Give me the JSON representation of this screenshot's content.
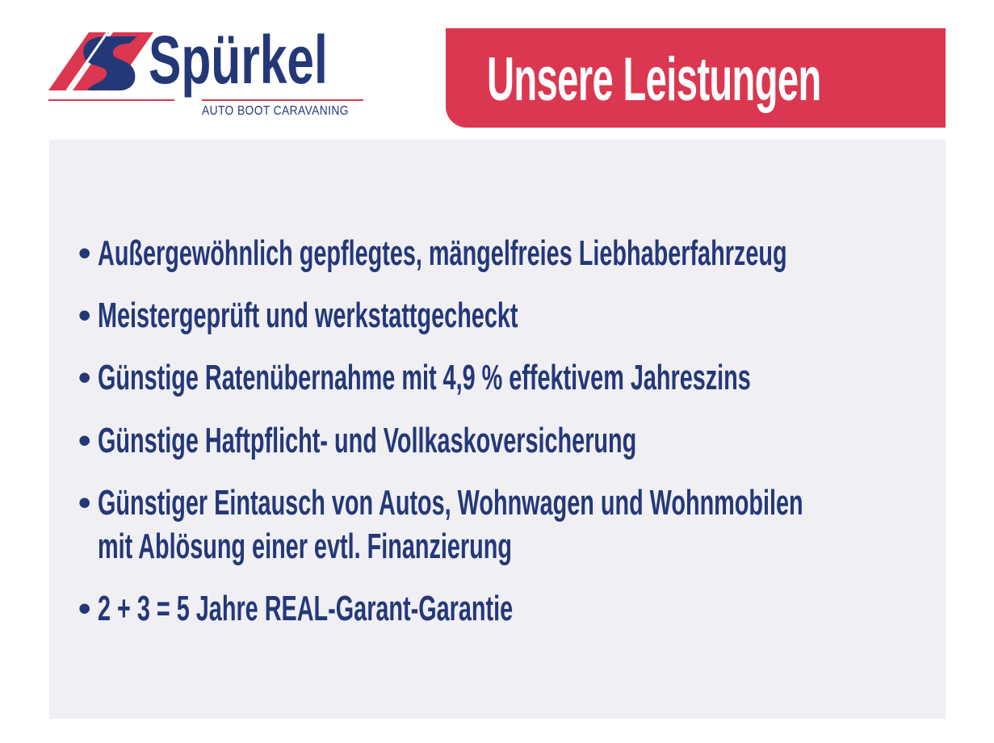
{
  "logo": {
    "brand": "Spürkel",
    "tagline": "AUTO BOOT CARAVANING",
    "colors": {
      "red": "#dc3750",
      "navy": "#243878"
    }
  },
  "header": {
    "title": "Unsere Leistungen",
    "background": "#dc3750"
  },
  "items": [
    {
      "bullet": "•",
      "lines": [
        "Außergewöhnlich gepflegtes, mängelfreies Liebhaberfahrzeug"
      ]
    },
    {
      "bullet": "•",
      "lines": [
        "Meistergeprüft und werkstattgecheckt"
      ]
    },
    {
      "bullet": "•",
      "lines": [
        "Günstige Ratenübernahme mit 4,9 % effektivem Jahreszins"
      ]
    },
    {
      "bullet": "•",
      "lines": [
        "Günstige Haftpflicht- und Vollkaskoversicherung"
      ]
    },
    {
      "bullet": "•",
      "lines": [
        "Günstiger Eintausch von Autos, Wohnwagen und Wohnmobilen",
        "mit Ablösung einer evtl. Finanzierung"
      ]
    },
    {
      "bullet": "•",
      "lines": [
        "2 + 3 = 5 Jahre REAL-Garant-Garantie"
      ]
    }
  ]
}
